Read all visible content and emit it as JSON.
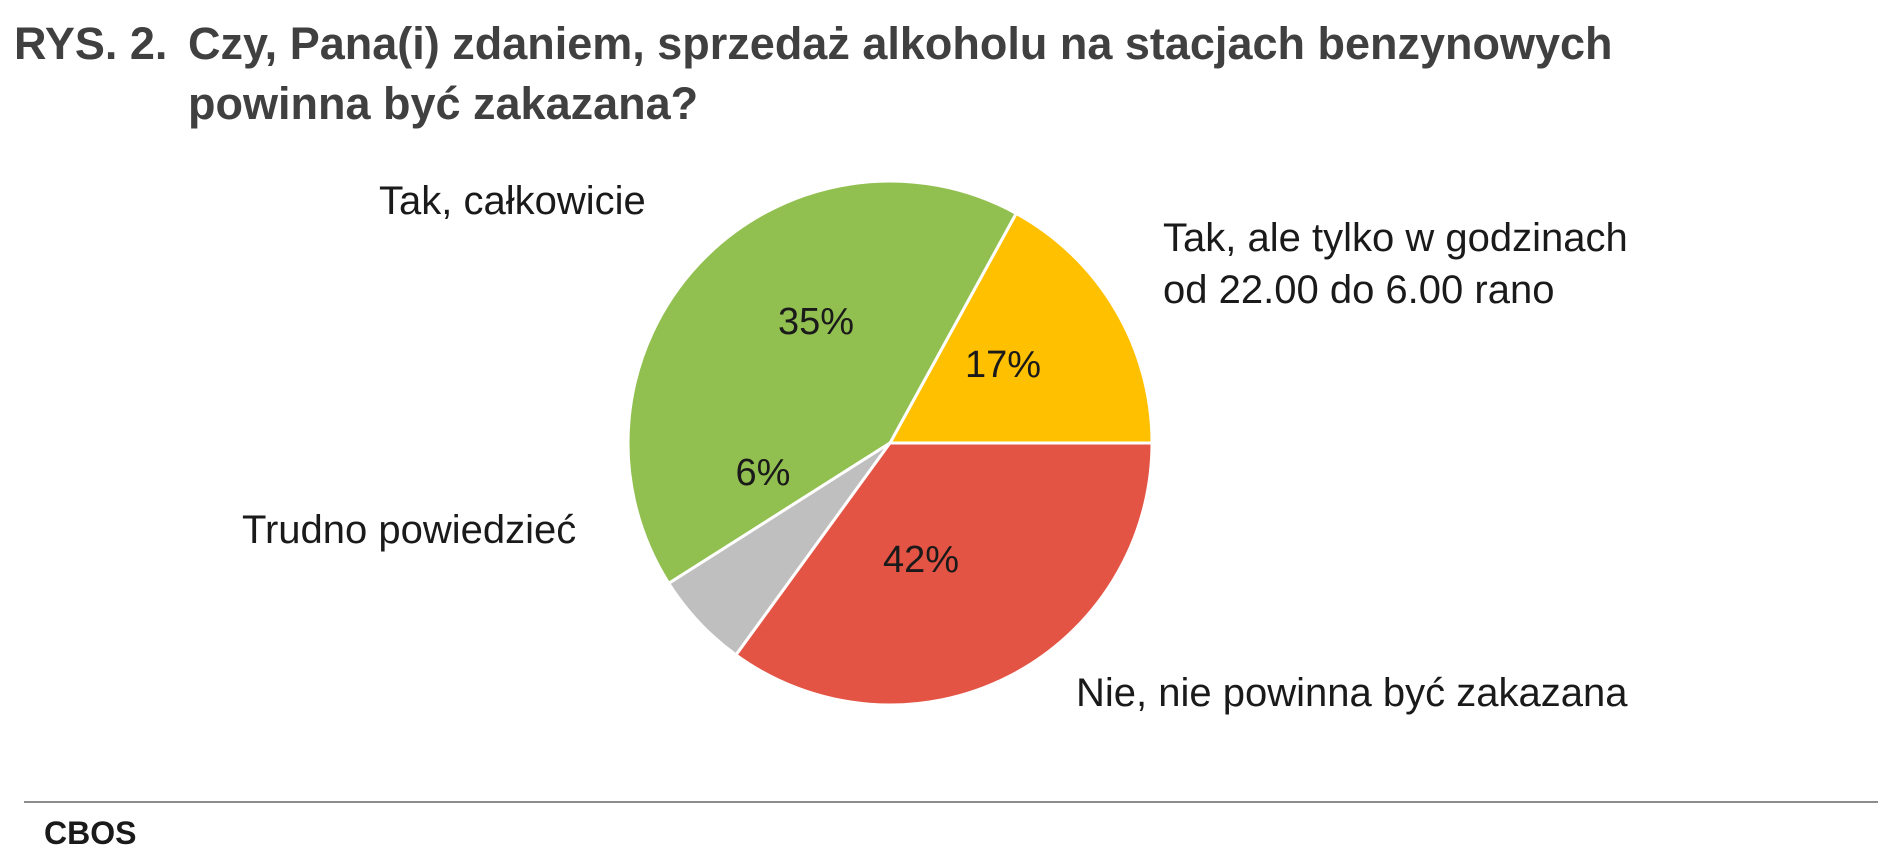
{
  "title": {
    "prefix": "RYS. 2.",
    "text": "Czy, Pana(i) zdaniem, sprzedaż alkoholu na stacjach benzynowych powinna być zakazana?"
  },
  "source": "CBOS",
  "chart_data": {
    "type": "pie",
    "slices": [
      {
        "label": [
          "Tak, ale tylko w godzinach",
          "od 22.00 do 6.00 rano"
        ],
        "value": 17,
        "display": "17%",
        "color": "#FFC000"
      },
      {
        "label": [
          "Nie, nie powinna być zakazana"
        ],
        "value": 42,
        "display": "42%",
        "color": "#92C050"
      },
      {
        "label": [
          "Trudno powiedzieć"
        ],
        "value": 6,
        "display": "6%",
        "color": "#BFBFBF"
      },
      {
        "label": [
          "Tak, całkowicie"
        ],
        "value": 35,
        "display": "35%",
        "color": "#E45445"
      }
    ]
  }
}
